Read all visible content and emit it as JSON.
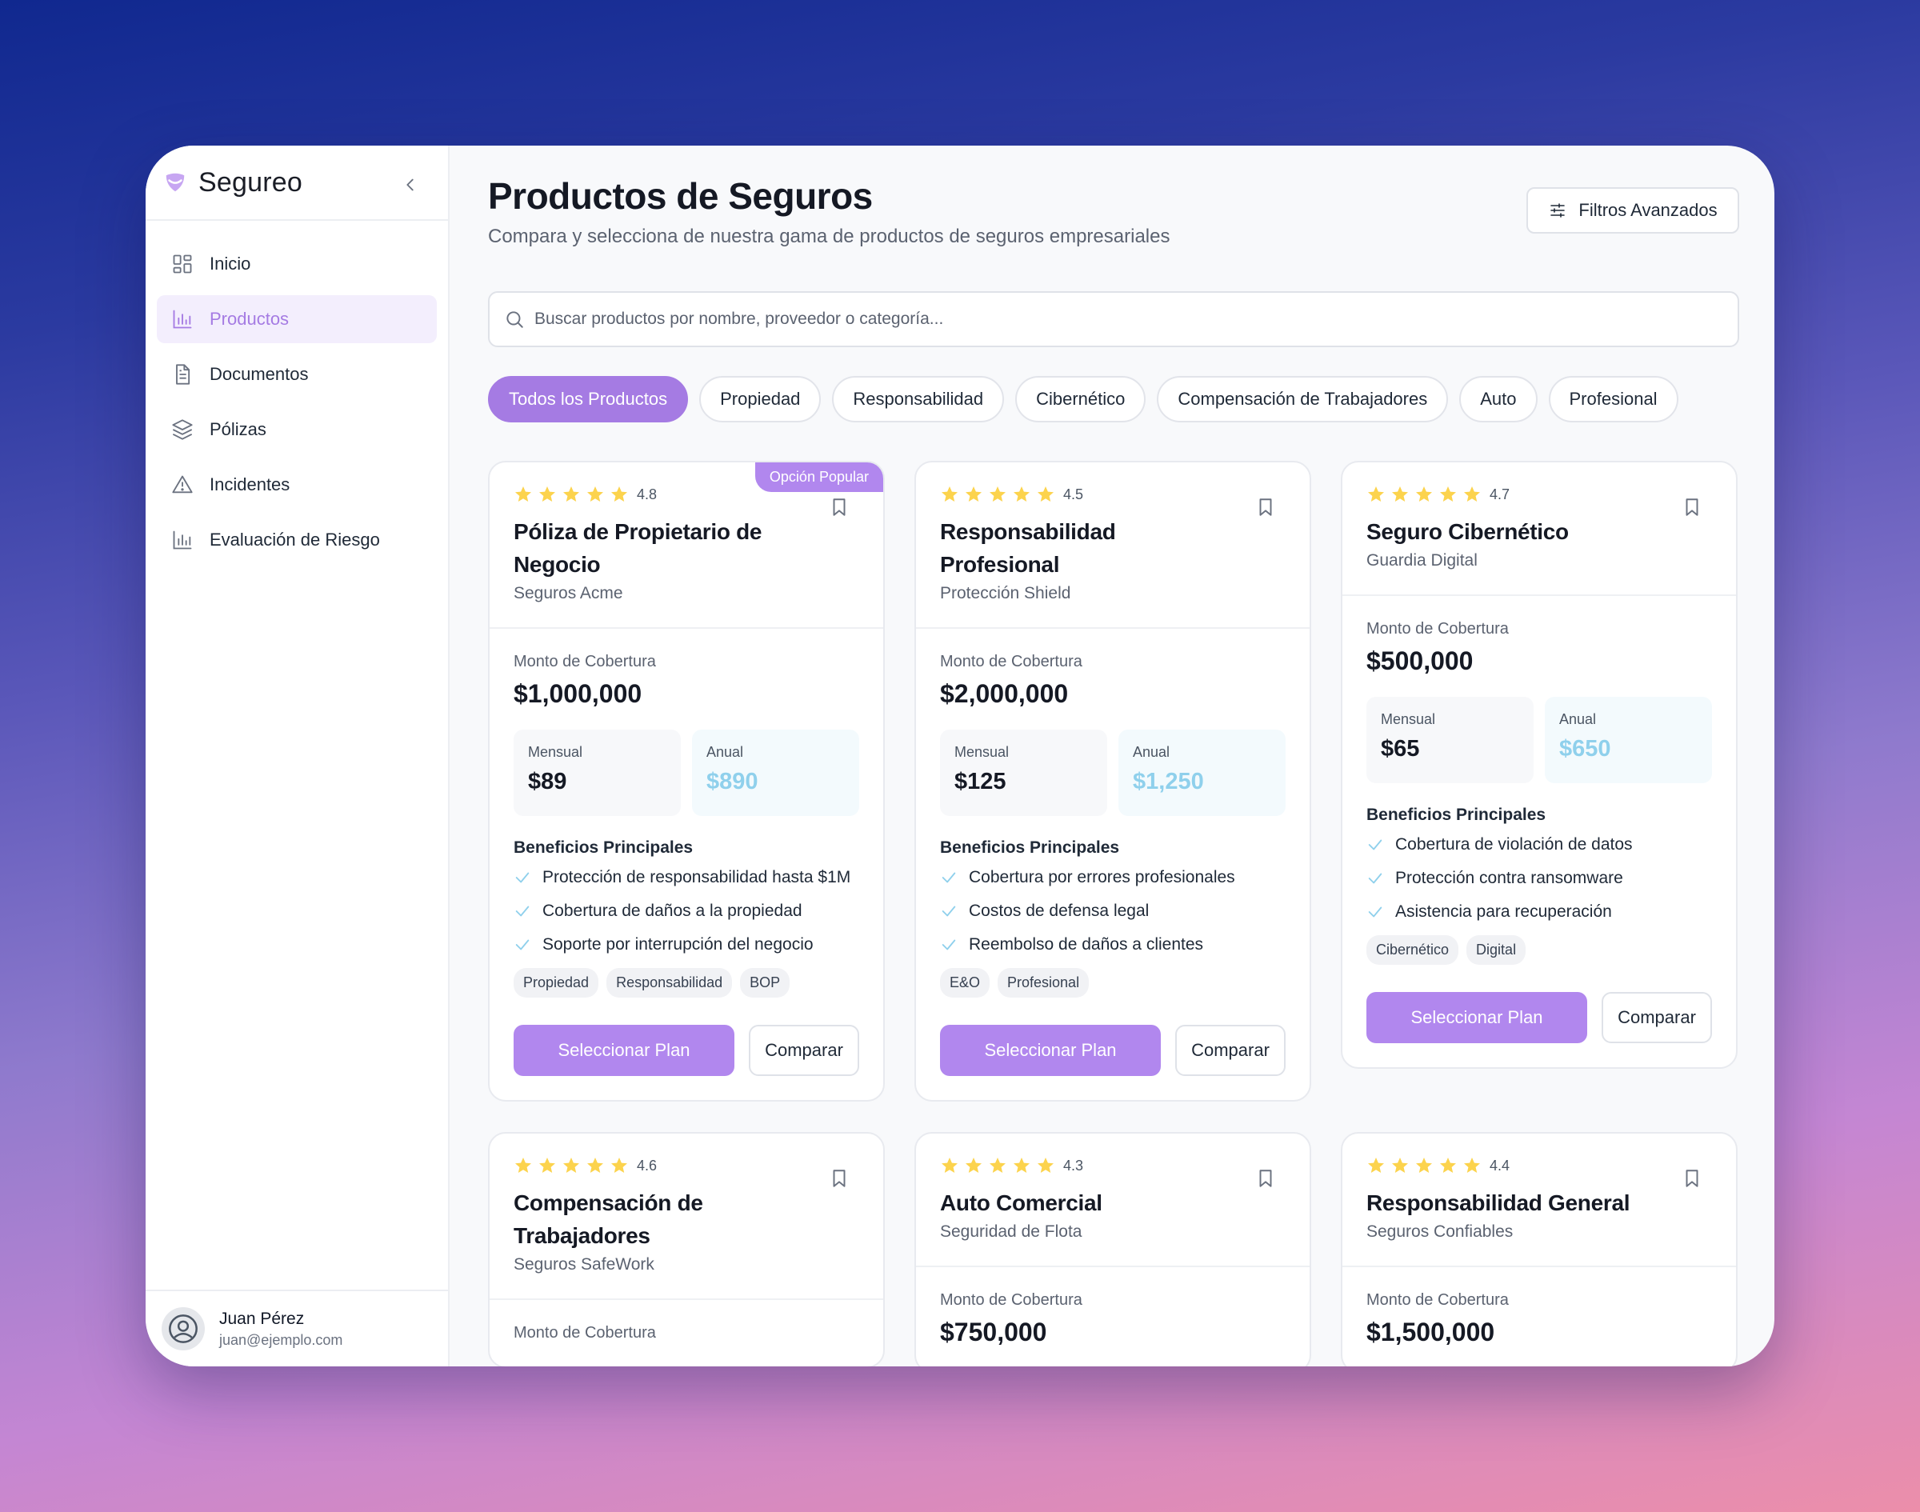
{
  "app": {
    "name": "Segureo"
  },
  "sidebar": {
    "items": [
      {
        "label": "Inicio",
        "icon": "grid-icon"
      },
      {
        "label": "Productos",
        "icon": "bar-chart-icon",
        "active": true
      },
      {
        "label": "Documentos",
        "icon": "document-icon"
      },
      {
        "label": "Pólizas",
        "icon": "layers-icon"
      },
      {
        "label": "Incidentes",
        "icon": "warning-icon"
      },
      {
        "label": "Evaluación de Riesgo",
        "icon": "bar-chart-icon"
      }
    ],
    "user": {
      "name": "Juan Pérez",
      "email": "juan@ejemplo.com"
    }
  },
  "header": {
    "title": "Productos de Seguros",
    "subtitle": "Compara y selecciona de nuestra gama de productos de seguros empresariales",
    "advanced_filters_label": "Filtros Avanzados"
  },
  "search": {
    "placeholder": "Buscar productos por nombre, proveedor o categoría..."
  },
  "tabs": [
    "Todos los Productos",
    "Propiedad",
    "Responsabilidad",
    "Cibernético",
    "Compensación de Trabajadores",
    "Auto",
    "Profesional"
  ],
  "labels": {
    "coverage": "Monto de Cobertura",
    "monthly": "Mensual",
    "annual": "Anual",
    "benefits": "Beneficios Principales",
    "select": "Seleccionar Plan",
    "compare": "Comparar",
    "popular": "Opción Popular"
  },
  "colors": {
    "accent": "#b187ee",
    "star": "#fcd34d",
    "check": "#8fd0ec"
  },
  "products": [
    {
      "rating": "4.8",
      "title": "Póliza de Propietario de Negocio",
      "provider": "Seguros Acme",
      "popular": true,
      "coverage": "$1,000,000",
      "monthly": "$89",
      "annual": "$890",
      "benefits": [
        "Protección de responsabilidad hasta $1M",
        "Cobertura de daños a la propiedad",
        "Soporte por interrupción del negocio"
      ],
      "tags": [
        "Propiedad",
        "Responsabilidad",
        "BOP"
      ]
    },
    {
      "rating": "4.5",
      "title": "Responsabilidad Profesional",
      "provider": "Protección Shield",
      "coverage": "$2,000,000",
      "monthly": "$125",
      "annual": "$1,250",
      "benefits": [
        "Cobertura por errores profesionales",
        "Costos de defensa legal",
        "Reembolso de daños a clientes"
      ],
      "tags": [
        "E&O",
        "Profesional"
      ]
    },
    {
      "rating": "4.7",
      "title": "Seguro Cibernético",
      "provider": "Guardia Digital",
      "coverage": "$500,000",
      "monthly": "$65",
      "annual": "$650",
      "benefits": [
        "Cobertura de violación de datos",
        "Protección contra ransomware",
        "Asistencia para recuperación"
      ],
      "tags": [
        "Cibernético",
        "Digital"
      ]
    },
    {
      "rating": "4.6",
      "title": "Compensación de Trabajadores",
      "provider": "Seguros SafeWork"
    },
    {
      "rating": "4.3",
      "title": "Auto Comercial",
      "provider": "Seguridad de Flota",
      "coverage": "$750,000"
    },
    {
      "rating": "4.4",
      "title": "Responsabilidad General",
      "provider": "Seguros Confiables",
      "coverage": "$1,500,000"
    }
  ]
}
